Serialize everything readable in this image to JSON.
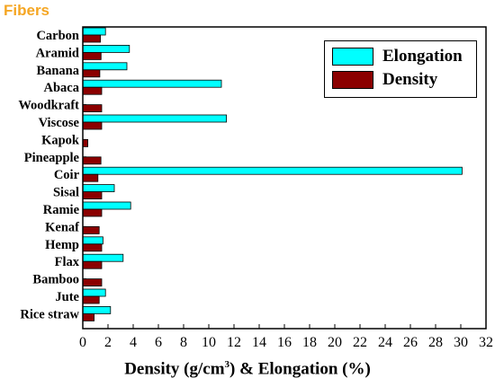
{
  "header": {
    "title": "Fibers"
  },
  "chart_data": {
    "type": "bar",
    "orientation": "horizontal",
    "categories": [
      "Carbon",
      "Aramid",
      "Banana",
      "Abaca",
      "Woodkraft",
      "Viscose",
      "Kapok",
      "Pineapple",
      "Coir",
      "Sisal",
      "Ramie",
      "Kenaf",
      "Hemp",
      "Flax",
      "Bamboo",
      "Jute",
      "Rice straw"
    ],
    "series": [
      {
        "name": "Elongation",
        "color": "#00ffff",
        "values": [
          1.8,
          3.7,
          3.5,
          11.0,
          null,
          11.4,
          null,
          null,
          30.1,
          2.5,
          3.8,
          null,
          1.6,
          3.2,
          null,
          1.8,
          2.2
        ]
      },
      {
        "name": "Density",
        "color": "#8b0000",
        "values": [
          1.4,
          1.45,
          1.35,
          1.5,
          1.5,
          1.5,
          0.4,
          1.44,
          1.2,
          1.5,
          1.5,
          1.3,
          1.5,
          1.5,
          1.5,
          1.3,
          0.9
        ]
      }
    ],
    "xlabel_main": "Density (g/cm",
    "xlabel_sup": "3",
    "xlabel_tail": ") & Elongation (%)",
    "xlim": [
      0,
      32
    ],
    "xticks": [
      0,
      2,
      4,
      6,
      8,
      10,
      12,
      14,
      16,
      18,
      20,
      22,
      24,
      26,
      28,
      30,
      32
    ],
    "grid": false,
    "legend_position": "top-right"
  }
}
